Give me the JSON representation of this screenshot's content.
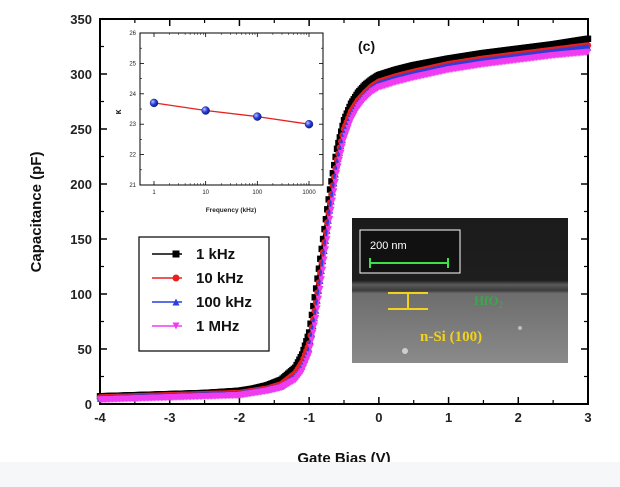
{
  "chart_data": {
    "type": "line",
    "panel_label": "(c)",
    "xlabel": "Gate Bias (V)",
    "ylabel": "Capacitance (pF)",
    "xlim": [
      -4,
      3
    ],
    "ylim": [
      0,
      350
    ],
    "xticks": [
      "-4",
      "-3",
      "-2",
      "-1",
      "0",
      "1",
      "2",
      "3"
    ],
    "yticks": [
      "0",
      "50",
      "100",
      "150",
      "200",
      "250",
      "300",
      "350"
    ],
    "legend_position": "lower-left",
    "series": [
      {
        "name": "1 kHz",
        "color": "#000000",
        "marker": "square",
        "x": [
          -4,
          -3.5,
          -3,
          -2.5,
          -2,
          -1.8,
          -1.6,
          -1.4,
          -1.2,
          -1.1,
          -1.0,
          -0.9,
          -0.8,
          -0.7,
          -0.6,
          -0.5,
          -0.4,
          -0.3,
          -0.2,
          -0.1,
          0,
          0.25,
          0.5,
          1,
          1.5,
          2,
          2.5,
          3
        ],
        "y": [
          7,
          8,
          9,
          10,
          12,
          14,
          17,
          22,
          33,
          45,
          65,
          105,
          150,
          195,
          232,
          258,
          273,
          283,
          290,
          295,
          299,
          304,
          308,
          314,
          319,
          323,
          327,
          332
        ]
      },
      {
        "name": "10 kHz",
        "color": "#e8201f",
        "marker": "circle",
        "x": [
          -4,
          -3.5,
          -3,
          -2.5,
          -2,
          -1.8,
          -1.6,
          -1.4,
          -1.2,
          -1.1,
          -1.0,
          -0.9,
          -0.8,
          -0.7,
          -0.6,
          -0.5,
          -0.4,
          -0.3,
          -0.2,
          -0.1,
          0,
          0.25,
          0.5,
          1,
          1.5,
          2,
          2.5,
          3
        ],
        "y": [
          6,
          7,
          8,
          9,
          10,
          12,
          14,
          18,
          28,
          38,
          55,
          92,
          138,
          183,
          222,
          250,
          266,
          276,
          283,
          289,
          293,
          298,
          302,
          309,
          314,
          318,
          322,
          326
        ]
      },
      {
        "name": "100 kHz",
        "color": "#2a3fe0",
        "marker": "triangle-up",
        "x": [
          -4,
          -3.5,
          -3,
          -2.5,
          -2,
          -1.8,
          -1.6,
          -1.4,
          -1.2,
          -1.1,
          -1.0,
          -0.9,
          -0.8,
          -0.7,
          -0.6,
          -0.5,
          -0.4,
          -0.3,
          -0.2,
          -0.1,
          0,
          0.25,
          0.5,
          1,
          1.5,
          2,
          2.5,
          3
        ],
        "y": [
          5,
          6,
          7,
          8,
          9,
          11,
          13,
          16,
          25,
          34,
          50,
          85,
          130,
          176,
          217,
          246,
          263,
          274,
          281,
          287,
          291,
          296,
          300,
          307,
          312,
          316,
          320,
          324
        ]
      },
      {
        "name": "1 MHz",
        "color": "#f03cf0",
        "marker": "triangle-down",
        "x": [
          -4,
          -3.5,
          -3,
          -2.5,
          -2,
          -1.8,
          -1.6,
          -1.4,
          -1.2,
          -1.1,
          -1.0,
          -0.9,
          -0.8,
          -0.7,
          -0.6,
          -0.5,
          -0.4,
          -0.3,
          -0.2,
          -0.1,
          0,
          0.25,
          0.5,
          1,
          1.5,
          2,
          2.5,
          3
        ],
        "y": [
          4,
          5,
          6,
          7,
          8,
          10,
          12,
          15,
          22,
          30,
          45,
          78,
          122,
          168,
          210,
          240,
          258,
          270,
          278,
          284,
          288,
          293,
          297,
          304,
          309,
          313,
          317,
          320
        ]
      }
    ],
    "inset": {
      "type": "scatter",
      "xlabel": "Frequency (kHz)",
      "ylabel": "κ",
      "xscale": "log",
      "xlim": [
        1,
        1000
      ],
      "ylim": [
        21,
        26
      ],
      "xticks": [
        "1",
        "10",
        "100",
        "1000"
      ],
      "yticks": [
        "21",
        "22",
        "23",
        "24",
        "25",
        "26"
      ],
      "x": [
        1,
        10,
        100,
        1000
      ],
      "y": [
        23.7,
        23.45,
        23.25,
        23.0
      ],
      "marker_color": "#2a3fe0",
      "line_color": "#e8201f"
    },
    "sem_image": {
      "scale_bar_label": "200 nm",
      "layer_label": "HfO2",
      "substrate_label": "n-Si (100)"
    }
  }
}
